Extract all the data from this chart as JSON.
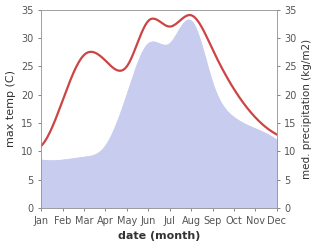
{
  "months": [
    "Jan",
    "Feb",
    "Mar",
    "Apr",
    "May",
    "Jun",
    "Jul",
    "Aug",
    "Sep",
    "Oct",
    "Nov",
    "Dec"
  ],
  "temperature": [
    11,
    19,
    27,
    26,
    25,
    33,
    32,
    34,
    28,
    21,
    16,
    13
  ],
  "precipitation": [
    8.5,
    8.5,
    9,
    11,
    20,
    29,
    29,
    33,
    22,
    16,
    14,
    12
  ],
  "temp_color": "#cc4444",
  "precip_fill_color": "#c8ccee",
  "background_color": "#ffffff",
  "ylim": [
    0,
    35
  ],
  "yticks": [
    0,
    5,
    10,
    15,
    20,
    25,
    30,
    35
  ],
  "ylabel_left": "max temp (C)",
  "ylabel_right": "med. precipitation (kg/m2)",
  "xlabel": "date (month)",
  "axis_fontsize": 8,
  "tick_fontsize": 7,
  "xlabel_fontsize": 8,
  "line_width": 1.6
}
